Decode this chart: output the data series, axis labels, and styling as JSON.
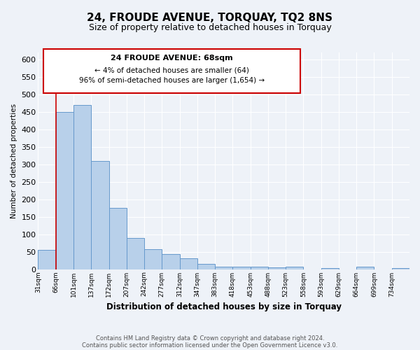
{
  "title": "24, FROUDE AVENUE, TORQUAY, TQ2 8NS",
  "subtitle": "Size of property relative to detached houses in Torquay",
  "xlabel": "Distribution of detached houses by size in Torquay",
  "ylabel": "Number of detached properties",
  "bin_labels": [
    "31sqm",
    "66sqm",
    "101sqm",
    "137sqm",
    "172sqm",
    "207sqm",
    "242sqm",
    "277sqm",
    "312sqm",
    "347sqm",
    "383sqm",
    "418sqm",
    "453sqm",
    "488sqm",
    "523sqm",
    "558sqm",
    "593sqm",
    "629sqm",
    "664sqm",
    "699sqm",
    "734sqm"
  ],
  "bar_heights": [
    55,
    450,
    470,
    310,
    175,
    90,
    58,
    43,
    32,
    16,
    8,
    8,
    8,
    5,
    8,
    0,
    3,
    0,
    8,
    0,
    3
  ],
  "bar_color": "#b8d0ea",
  "bar_edge_color": "#6699cc",
  "vline_color": "#cc0000",
  "ylim": [
    0,
    620
  ],
  "yticks": [
    0,
    50,
    100,
    150,
    200,
    250,
    300,
    350,
    400,
    450,
    500,
    550,
    600
  ],
  "annotation_title": "24 FROUDE AVENUE: 68sqm",
  "annotation_line1": "← 4% of detached houses are smaller (64)",
  "annotation_line2": "96% of semi-detached houses are larger (1,654) →",
  "annotation_box_color": "#ffffff",
  "annotation_box_edge": "#cc0000",
  "footer1": "Contains HM Land Registry data © Crown copyright and database right 2024.",
  "footer2": "Contains public sector information licensed under the Open Government Licence v3.0.",
  "background_color": "#eef2f8",
  "grid_color": "#ffffff",
  "title_fontsize": 11,
  "subtitle_fontsize": 9
}
